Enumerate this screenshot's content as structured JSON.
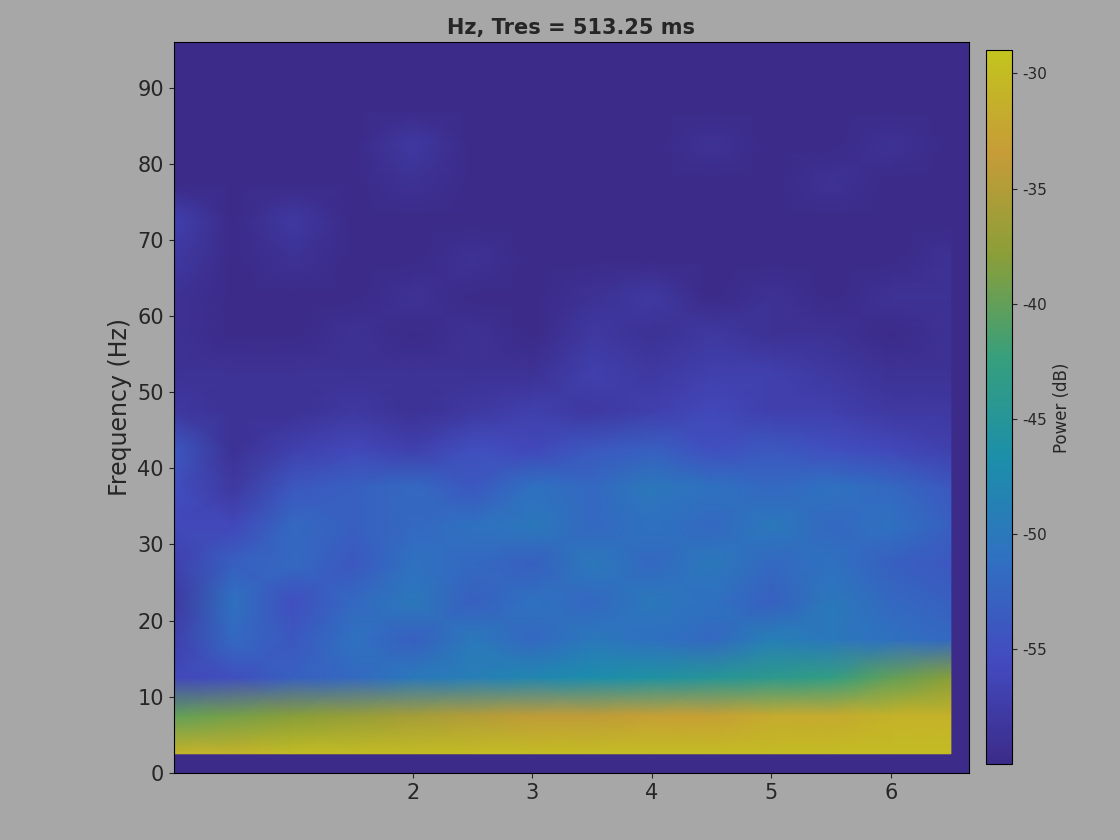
{
  "chart_data": {
    "type": "heatmap",
    "title": "Hz, Tres = 513.25 ms",
    "y_label": "Frequency (Hz)",
    "xlim": [
      0,
      6.65
    ],
    "xticks": [
      2,
      3,
      4,
      5,
      6
    ],
    "ylim": [
      0,
      96
    ],
    "yticks": [
      0,
      10,
      20,
      30,
      40,
      50,
      60,
      70,
      80,
      90
    ],
    "time": [
      0,
      0.5,
      1,
      1.5,
      2,
      2.5,
      3,
      3.5,
      4,
      4.5,
      5,
      5.5,
      6,
      6.5
    ],
    "frequency": [
      2.5,
      7.5,
      12.5,
      17.5,
      22.5,
      27.5,
      32.5,
      37.5,
      42.5,
      47.5,
      52.5,
      57.5,
      62.5,
      67.5,
      72.5,
      77.5,
      82.5,
      87.5,
      92.5
    ],
    "power": [
      [
        -31,
        -31,
        -30,
        -30,
        -30,
        -30,
        -30,
        -30,
        -30,
        -30,
        -30,
        -30,
        -30,
        -30
      ],
      [
        -40,
        -39,
        -38,
        -37,
        -36,
        -35,
        -34,
        -34,
        -33,
        -33,
        -32,
        -32,
        -31,
        -31
      ],
      [
        -56,
        -55,
        -53,
        -52,
        -50,
        -49,
        -48,
        -47,
        -46,
        -45,
        -44,
        -43,
        -40,
        -38
      ],
      [
        -57,
        -52,
        -54,
        -51,
        -53,
        -50,
        -52,
        -50,
        -51,
        -52,
        -49,
        -50,
        -51,
        -52
      ],
      [
        -58,
        -51,
        -55,
        -52,
        -50,
        -53,
        -51,
        -52,
        -50,
        -51,
        -53,
        -50,
        -52,
        -53
      ],
      [
        -57,
        -53,
        -52,
        -54,
        -51,
        -52,
        -53,
        -50,
        -52,
        -50,
        -52,
        -51,
        -53,
        -54
      ],
      [
        -56,
        -56,
        -52,
        -53,
        -52,
        -51,
        -50,
        -52,
        -51,
        -52,
        -50,
        -52,
        -51,
        -53
      ],
      [
        -55,
        -58,
        -54,
        -53,
        -52,
        -54,
        -51,
        -52,
        -50,
        -51,
        -52,
        -51,
        -52,
        -54
      ],
      [
        -54,
        -59,
        -57,
        -56,
        -57,
        -55,
        -56,
        -54,
        -53,
        -55,
        -54,
        -55,
        -56,
        -57
      ],
      [
        -58,
        -59,
        -59,
        -58,
        -59,
        -58,
        -57,
        -58,
        -57,
        -56,
        -57,
        -57,
        -58,
        -58
      ],
      [
        -59,
        -59,
        -59,
        -59,
        -59,
        -59,
        -59,
        -57,
        -58,
        -57,
        -57,
        -58,
        -59,
        -59
      ],
      [
        -59,
        -60,
        -60,
        -59,
        -60,
        -59,
        -60,
        -58,
        -59,
        -58,
        -59,
        -59,
        -60,
        -59
      ],
      [
        -59,
        -60,
        -60,
        -60,
        -59,
        -60,
        -60,
        -59,
        -58,
        -60,
        -59,
        -60,
        -59,
        -59
      ],
      [
        -58,
        -60,
        -59,
        -60,
        -60,
        -59,
        -60,
        -60,
        -60,
        -60,
        -60,
        -60,
        -60,
        -59
      ],
      [
        -57,
        -60,
        -58,
        -60,
        -60,
        -60,
        -60,
        -60,
        -60,
        -60,
        -60,
        -60,
        -60,
        -60
      ],
      [
        -60,
        -60,
        -60,
        -60,
        -59,
        -60,
        -60,
        -60,
        -60,
        -60,
        -60,
        -59,
        -60,
        -60
      ],
      [
        -60,
        -60,
        -60,
        -60,
        -58,
        -60,
        -60,
        -60,
        -60,
        -59,
        -60,
        -60,
        -59,
        -60
      ],
      [
        -60,
        -60,
        -60,
        -60,
        -60,
        -60,
        -60,
        -60,
        -60,
        -60,
        -60,
        -60,
        -60,
        -60
      ],
      [
        -60,
        -60,
        -60,
        -60,
        -60,
        -60,
        -60,
        -60,
        -60,
        -60,
        -60,
        -60,
        -60,
        -60
      ]
    ],
    "colorbar": {
      "label": "Power (dB)",
      "range": [
        -60,
        -29
      ],
      "ticks": [
        -55,
        -50,
        -45,
        -40,
        -35,
        -30
      ]
    }
  }
}
